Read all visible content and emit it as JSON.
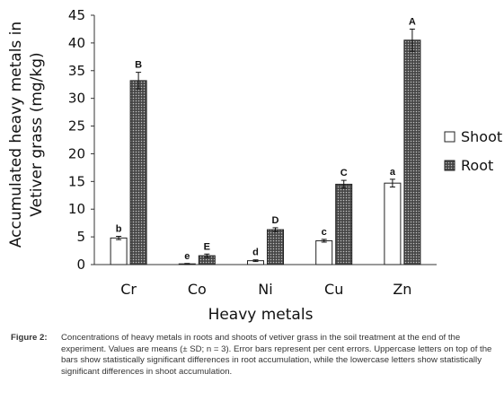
{
  "chart_data": {
    "type": "bar",
    "categories": [
      "Cr",
      "Co",
      "Ni",
      "Cu",
      "Zn"
    ],
    "series": [
      {
        "name": "Shoot",
        "values": [
          4.8,
          0.1,
          0.7,
          4.3,
          14.7
        ],
        "errors": [
          0.3,
          0.1,
          0.15,
          0.25,
          0.7
        ],
        "letters": [
          "b",
          "e",
          "d",
          "c",
          "a"
        ],
        "pattern": "white"
      },
      {
        "name": "Root",
        "values": [
          33.2,
          1.6,
          6.3,
          14.5,
          40.5
        ],
        "errors": [
          1.5,
          0.3,
          0.35,
          0.7,
          2.0
        ],
        "letters": [
          "B",
          "E",
          "D",
          "C",
          "A"
        ],
        "pattern": "dotted-dark"
      }
    ],
    "xlabel": "Heavy metals",
    "ylabel_line1": "Accumulated heavy metals in",
    "ylabel_line2": "Vetiver grass (mg/kg)",
    "ylim": [
      0,
      45
    ],
    "yticks": [
      0,
      5,
      10,
      15,
      20,
      25,
      30,
      35,
      40,
      45
    ],
    "grid": false,
    "legend_position": "right"
  },
  "caption": {
    "label": "Figure 2:",
    "text": "Concentrations of heavy metals in roots and shoots of vetiver grass in the soil treatment at the end of the experiment. Values are means (± SD; n = 3). Error bars represent per cent errors. Uppercase letters on top of the bars show statistically significant differences in root accumulation, while the lowercase letters show statistically significant differences in shoot accumulation."
  },
  "colors": {
    "shoot_fill": "#ffffff",
    "root_fill": "#4a4a4a",
    "root_dots": "#bdbdbd",
    "axis": "#333333"
  }
}
